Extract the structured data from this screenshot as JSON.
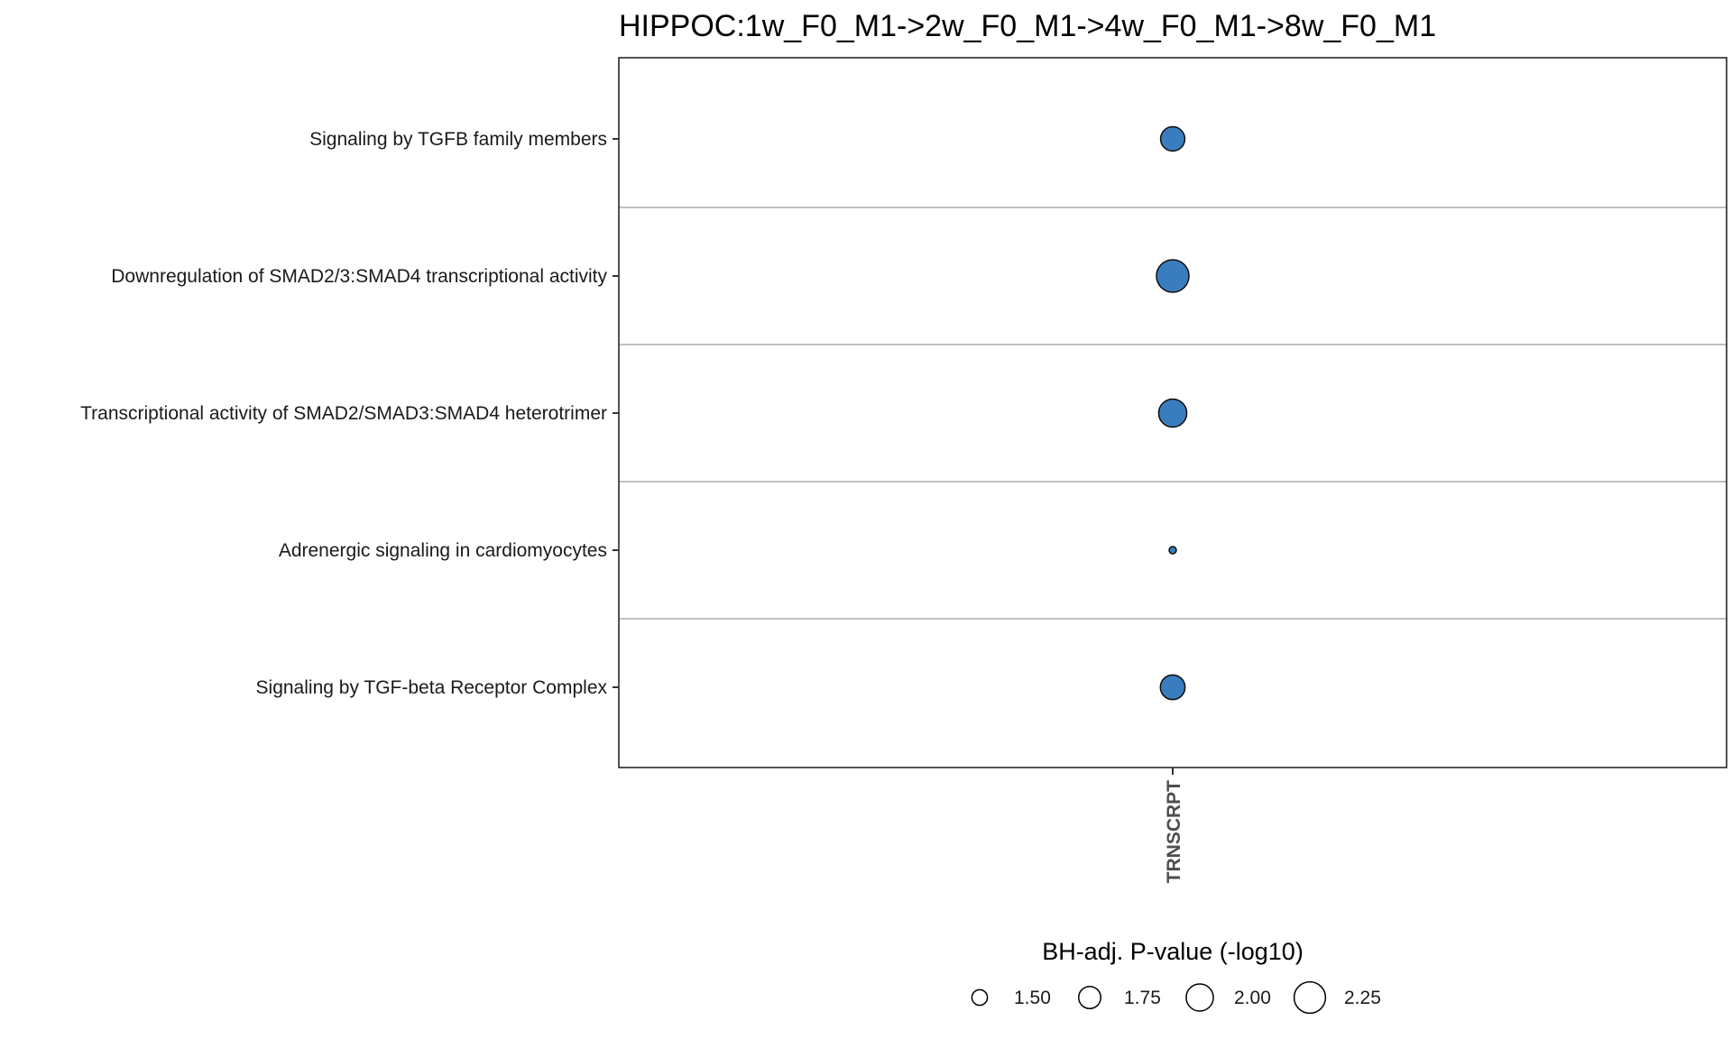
{
  "chart_data": {
    "type": "scatter",
    "title": "HIPPOC:1w_F0_M1->2w_F0_M1->4w_F0_M1->8w_F0_M1",
    "xlabel": "",
    "ylabel": "",
    "x_categories": [
      "TRNSCRPT"
    ],
    "y_categories": [
      "Signaling by TGFB family members",
      "Downregulation of SMAD2/3:SMAD4 transcriptional activity",
      "Transcriptional activity of SMAD2/SMAD3:SMAD4 heterotrimer",
      "Adrenergic signaling in cardiomyocytes",
      "Signaling by TGF-beta Receptor Complex"
    ],
    "points": [
      {
        "x": "TRNSCRPT",
        "y": "Signaling by TGFB family members",
        "size_value": 1.85
      },
      {
        "x": "TRNSCRPT",
        "y": "Downregulation of SMAD2/3:SMAD4 transcriptional activity",
        "size_value": 2.32
      },
      {
        "x": "TRNSCRPT",
        "y": "Transcriptional activity of SMAD2/SMAD3:SMAD4 heterotrimer",
        "size_value": 2.05
      },
      {
        "x": "TRNSCRPT",
        "y": "Adrenergic signaling in cardiomyocytes",
        "size_value": 1.31
      },
      {
        "x": "TRNSCRPT",
        "y": "Signaling by TGF-beta Receptor Complex",
        "size_value": 1.87
      }
    ],
    "legend": {
      "title": "BH-adj. P-value (-log10)",
      "placement": "bottom",
      "values": [
        1.5,
        1.75,
        2.0,
        2.25
      ],
      "labels": [
        "1.50",
        "1.75",
        "2.00",
        "2.25"
      ]
    },
    "size_range": [
      1.31,
      2.32
    ],
    "grid": "horizontal separators between rows",
    "colors": {
      "point_fill": "#3a7dbf",
      "point_stroke": "#0d0d0d",
      "panel_border": "#1a1a1a",
      "separator": "#bfbfbf",
      "tick_text": "#1a1a1a",
      "x_tick_text": "#4d4d4d"
    }
  }
}
